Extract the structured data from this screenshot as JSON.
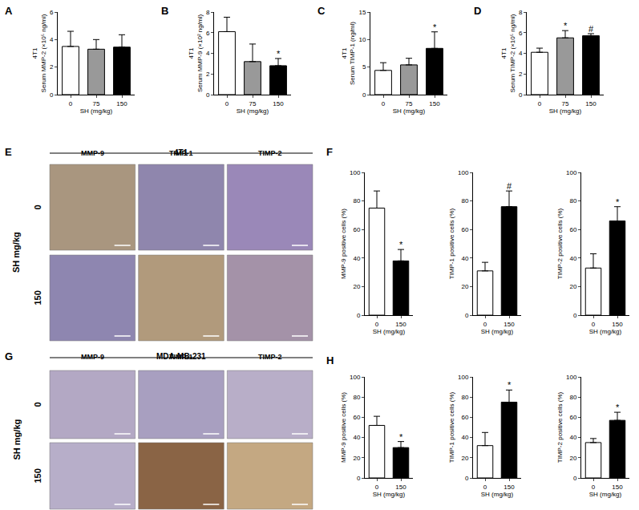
{
  "chart_data": [
    {
      "panel": "A",
      "type": "bar",
      "cell_line": "4T1",
      "y_label": "Serum MMP-2 (×10⁵ ng/ml)",
      "x_label": "SH (mg/kg)",
      "categories": [
        "0",
        "75",
        "150"
      ],
      "values": [
        3.5,
        3.3,
        3.45
      ],
      "errors": [
        1.1,
        0.7,
        0.9
      ],
      "colors": [
        "#ffffff",
        "#999999",
        "#000000"
      ],
      "ylim": [
        0,
        6
      ],
      "yticks": [
        0,
        2,
        4,
        6
      ]
    },
    {
      "panel": "B",
      "type": "bar",
      "cell_line": "4T1",
      "y_label": "Serum MMP-9 (×10² ng/ml)",
      "x_label": "SH (mg/kg)",
      "categories": [
        "0",
        "75",
        "150"
      ],
      "values": [
        6.1,
        3.2,
        2.8
      ],
      "errors": [
        1.4,
        1.7,
        0.7
      ],
      "significance": [
        null,
        null,
        "*"
      ],
      "colors": [
        "#ffffff",
        "#999999",
        "#000000"
      ],
      "ylim": [
        0,
        8
      ],
      "yticks": [
        0,
        2,
        4,
        6,
        8
      ]
    },
    {
      "panel": "C",
      "type": "bar",
      "cell_line": "4T1",
      "y_label": "Serum TIMP-1 (ng/ml)",
      "x_label": "SH (mg/kg)",
      "categories": [
        "0",
        "75",
        "150"
      ],
      "values": [
        4.4,
        5.4,
        8.4
      ],
      "errors": [
        1.4,
        1.2,
        3.0
      ],
      "significance": [
        null,
        null,
        "*"
      ],
      "colors": [
        "#ffffff",
        "#999999",
        "#000000"
      ],
      "ylim": [
        0,
        15
      ],
      "yticks": [
        0,
        5,
        10,
        15
      ]
    },
    {
      "panel": "D",
      "type": "bar",
      "cell_line": "4T1",
      "y_label": "Serum TIMP-2 (×10⁵ ng/ml)",
      "x_label": "SH (mg/kg)",
      "categories": [
        "0",
        "75",
        "150"
      ],
      "values": [
        4.1,
        5.5,
        5.7
      ],
      "errors": [
        0.4,
        0.7,
        0.2
      ],
      "significance": [
        null,
        "*",
        "#"
      ],
      "colors": [
        "#ffffff",
        "#999999",
        "#000000"
      ],
      "ylim": [
        0,
        8
      ],
      "yticks": [
        0,
        2,
        4,
        6,
        8
      ]
    },
    {
      "panel": "F",
      "type": "bar",
      "y_label": "MMP-9 positive cells (%)",
      "x_label": "SH (mg/kg)",
      "categories": [
        "0",
        "150"
      ],
      "values": [
        75,
        38
      ],
      "errors": [
        12,
        8
      ],
      "significance": [
        null,
        "*"
      ],
      "colors": [
        "#ffffff",
        "#000000"
      ],
      "ylim": [
        0,
        100
      ],
      "yticks": [
        0,
        20,
        40,
        60,
        80,
        100
      ]
    },
    {
      "type": "bar",
      "y_label": "TIMP-1 positive cells (%)",
      "x_label": "SH (mg/kg)",
      "categories": [
        "0",
        "150"
      ],
      "values": [
        31,
        76
      ],
      "errors": [
        6,
        11
      ],
      "significance": [
        null,
        "#"
      ],
      "colors": [
        "#ffffff",
        "#000000"
      ],
      "ylim": [
        0,
        100
      ],
      "yticks": [
        0,
        20,
        40,
        60,
        80,
        100
      ]
    },
    {
      "type": "bar",
      "y_label": "TIMP-2 positive cells (%)",
      "x_label": "SH (mg/kg)",
      "categories": [
        "0",
        "150"
      ],
      "values": [
        33,
        66
      ],
      "errors": [
        10,
        10
      ],
      "significance": [
        null,
        "*"
      ],
      "colors": [
        "#ffffff",
        "#000000"
      ],
      "ylim": [
        0,
        100
      ],
      "yticks": [
        0,
        20,
        40,
        60,
        80,
        100
      ]
    },
    {
      "panel": "H",
      "type": "bar",
      "y_label": "MMP-9 positive cells (%)",
      "x_label": "SH (mg/kg)",
      "categories": [
        "0",
        "150"
      ],
      "values": [
        52,
        30
      ],
      "errors": [
        9,
        6
      ],
      "significance": [
        null,
        "*"
      ],
      "colors": [
        "#ffffff",
        "#000000"
      ],
      "ylim": [
        0,
        100
      ],
      "yticks": [
        0,
        20,
        40,
        60,
        80,
        100
      ]
    },
    {
      "type": "bar",
      "y_label": "TIMP-1 positive cells (%)",
      "x_label": "SH (mg/kg)",
      "categories": [
        "0",
        "150"
      ],
      "values": [
        32,
        75
      ],
      "errors": [
        13,
        12
      ],
      "significance": [
        null,
        "*"
      ],
      "colors": [
        "#ffffff",
        "#000000"
      ],
      "ylim": [
        0,
        100
      ],
      "yticks": [
        0,
        20,
        40,
        60,
        80,
        100
      ]
    },
    {
      "type": "bar",
      "y_label": "TIMP-2 positive cells (%)",
      "x_label": "SH (mg/kg)",
      "categories": [
        "0",
        "150"
      ],
      "values": [
        35,
        57
      ],
      "errors": [
        4,
        8
      ],
      "significance": [
        null,
        "*"
      ],
      "colors": [
        "#ffffff",
        "#000000"
      ],
      "ylim": [
        0,
        100
      ],
      "yticks": [
        0,
        20,
        40,
        60,
        80,
        100
      ]
    }
  ],
  "image_panels": [
    {
      "panel": "E",
      "cell_line": "4T1",
      "row_title": "SH mg/kg",
      "rows": [
        "0",
        "150"
      ],
      "columns": [
        "MMP-9",
        "TIMP-1",
        "TIMP-2"
      ]
    },
    {
      "panel": "G",
      "cell_line": "MDA-MB-231",
      "row_title": "SH mg/kg",
      "rows": [
        "0",
        "150"
      ],
      "columns": [
        "MMP-9",
        "TIMP-1",
        "TIMP-2"
      ]
    }
  ]
}
